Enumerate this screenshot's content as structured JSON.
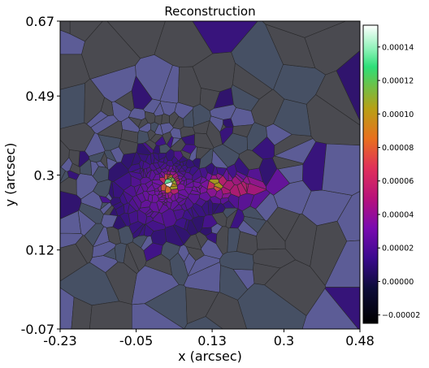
{
  "chart_data": {
    "type": "heatmap",
    "title": "Reconstruction",
    "xlabel": "x (arcsec)",
    "ylabel": "y (arcsec)",
    "xlim": [
      -0.23,
      0.48
    ],
    "ylim": [
      -0.07,
      0.67
    ],
    "x_ticks": [
      "-0.23",
      "-0.05",
      "0.13",
      "0.3",
      "0.48"
    ],
    "x_tick_values": [
      -0.23,
      -0.05,
      0.13,
      0.3,
      0.48
    ],
    "y_ticks": [
      "-0.07",
      "0.12",
      "0.3",
      "0.49",
      "0.67"
    ],
    "y_tick_values": [
      -0.07,
      0.12,
      0.3,
      0.49,
      0.67
    ],
    "colorbar": {
      "min": -2.5e-05,
      "max": 0.000153,
      "ticks": [
        "−0.00002",
        "0.00000",
        "0.00002",
        "0.00004",
        "0.00006",
        "0.00008",
        "0.00010",
        "0.00012",
        "0.00014"
      ],
      "tick_values": [
        -2e-05,
        0.0,
        2e-05,
        4e-05,
        6e-05,
        8e-05,
        0.0001,
        0.00012,
        0.00014
      ],
      "colormap": "gnuplot2-like (black-blue-purple-magenta-orange-yellow-green-white)"
    },
    "grid": false,
    "source_features": [
      {
        "x": 0.03,
        "y": 0.28,
        "peak": 0.000135
      },
      {
        "x": 0.14,
        "y": 0.28,
        "peak": 9.5e-05
      },
      {
        "x": 0.25,
        "y": 0.27,
        "peak": 6e-05
      }
    ],
    "background_value": 5e-07
  }
}
